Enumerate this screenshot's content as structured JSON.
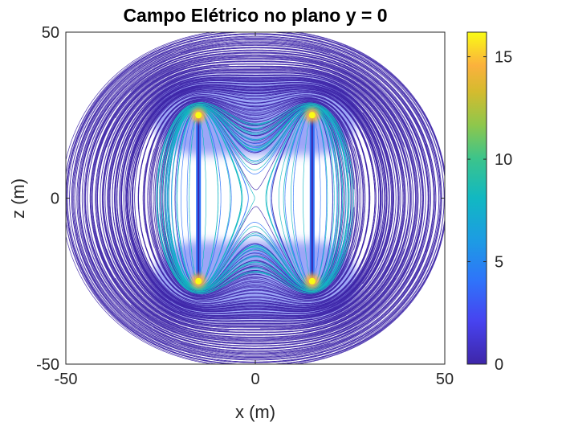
{
  "chart_data": {
    "type": "contour",
    "title": "Campo Elétrico no plano y = 0",
    "xlabel": "x (m)",
    "ylabel": "z (m)",
    "xlim": [
      -50,
      50
    ],
    "ylim": [
      -50,
      50
    ],
    "xticks": [
      -50,
      0,
      50
    ],
    "yticks": [
      -50,
      0,
      50
    ],
    "colorbar": {
      "colormap": "parula",
      "range": [
        0,
        16.2
      ],
      "ticks": [
        0,
        5,
        10,
        15
      ]
    },
    "sources": [
      {
        "type": "line-segment",
        "x": -15,
        "z_from": -25,
        "z_to": 25
      },
      {
        "type": "line-segment",
        "x": 15,
        "z_from": -25,
        "z_to": 25
      }
    ],
    "grid": false,
    "legend": "none",
    "colors": {
      "low": "#3e26a8",
      "mid_blue": "#2f73fa",
      "teal": "#11b8c2",
      "green": "#62cb5d",
      "orange": "#fbb13d",
      "high": "#f9fb15"
    }
  }
}
